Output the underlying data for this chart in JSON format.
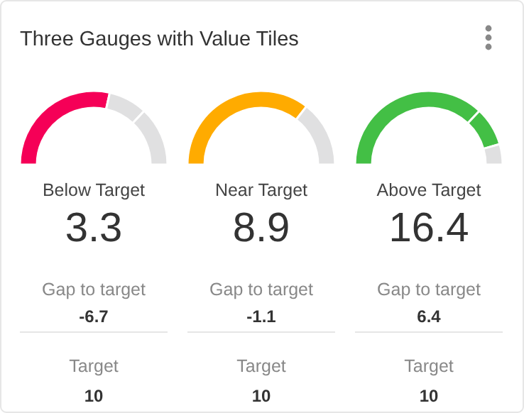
{
  "chart_data": [
    {
      "type": "other",
      "title": "Three Gauges with Value Tiles"
    },
    {
      "type": "donut",
      "title": "Below Target",
      "categories": [
        null,
        null,
        null
      ],
      "values": [
        57,
        17,
        26
      ],
      "colors": [
        "#f50057",
        "#e0e0e1",
        "#e0e0e1"
      ],
      "annotations": [
        "3.3",
        "Gap to target",
        "-6.7",
        "Target",
        "10"
      ]
    },
    {
      "type": "donut",
      "title": "Near Target",
      "categories": [
        null,
        null
      ],
      "values": [
        71,
        29
      ],
      "colors": [
        "#ffab00",
        "#e0e0e1"
      ],
      "annotations": [
        "8.9",
        "Gap to target",
        "-1.1",
        "Target",
        "10"
      ]
    },
    {
      "type": "donut",
      "title": "Above Target",
      "categories": [
        null,
        null,
        null
      ],
      "values": [
        74,
        17,
        9
      ],
      "colors": [
        "#43bf45",
        "#43bf45",
        "#e0e0e1"
      ],
      "annotations": [
        "16.4",
        "Gap to target",
        "6.4",
        "Target",
        "10"
      ]
    }
  ]
}
